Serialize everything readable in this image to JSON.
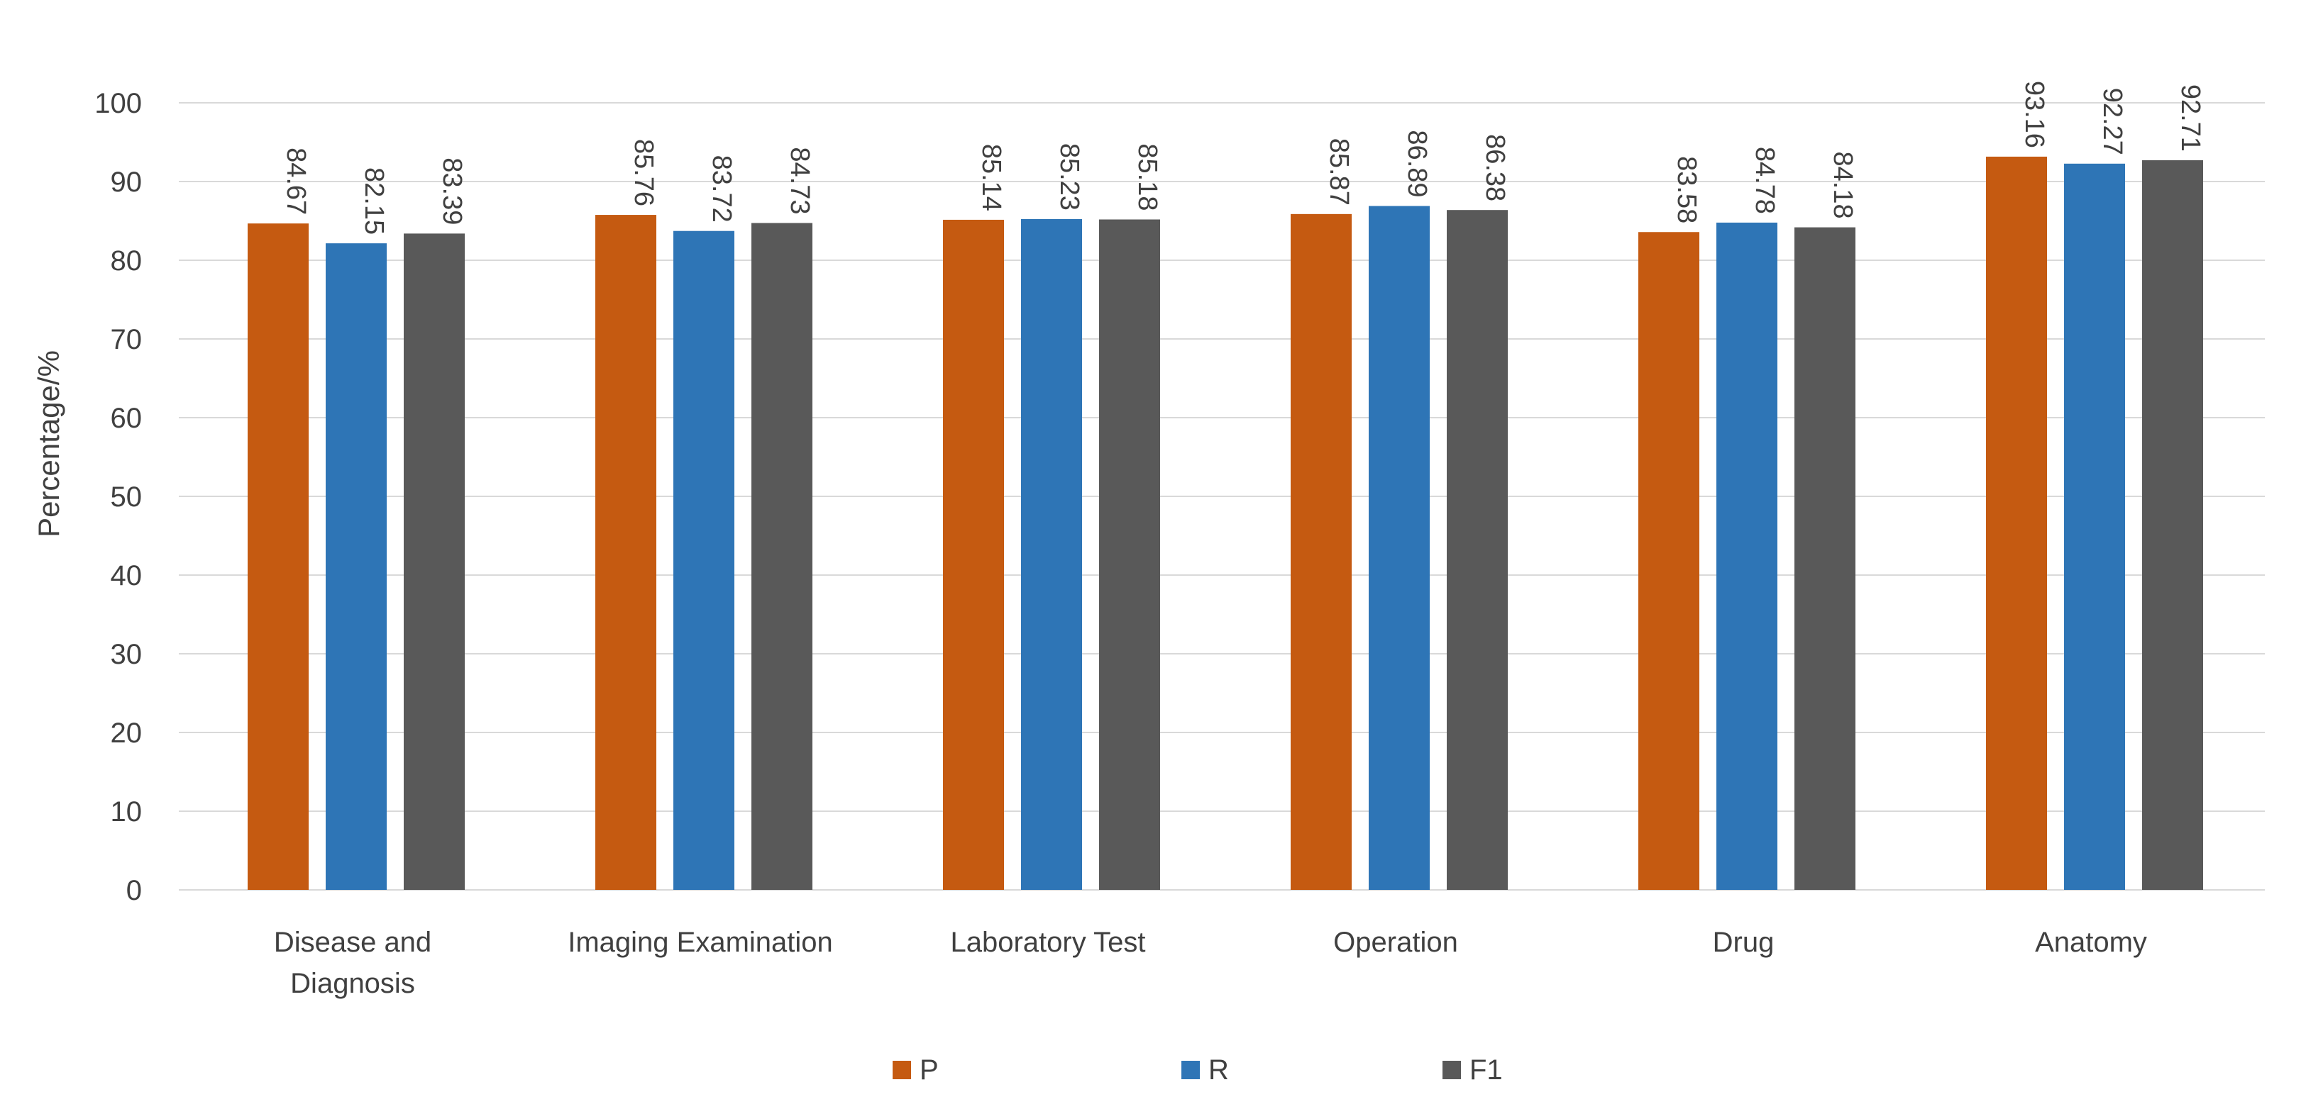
{
  "chart_data": {
    "type": "bar",
    "title": "",
    "xlabel": "",
    "ylabel": "Percentage/%",
    "ylim": [
      0,
      100
    ],
    "ytick_step": 10,
    "grid": true,
    "legend_position": "bottom",
    "categories": [
      [
        "Disease and",
        "Diagnosis"
      ],
      [
        "Imaging Examination"
      ],
      [
        "Laboratory Test"
      ],
      [
        "Operation"
      ],
      [
        "Drug"
      ],
      [
        "Anatomy"
      ]
    ],
    "series": [
      {
        "name": "P",
        "color": "#C55A11",
        "values": [
          84.67,
          85.76,
          85.14,
          85.87,
          83.58,
          93.16
        ]
      },
      {
        "name": "R",
        "color": "#2E75B6",
        "values": [
          82.15,
          83.72,
          85.23,
          86.89,
          84.78,
          92.27
        ]
      },
      {
        "name": "F1",
        "color": "#595959",
        "values": [
          83.39,
          84.73,
          85.18,
          86.38,
          84.18,
          92.71
        ]
      }
    ]
  }
}
